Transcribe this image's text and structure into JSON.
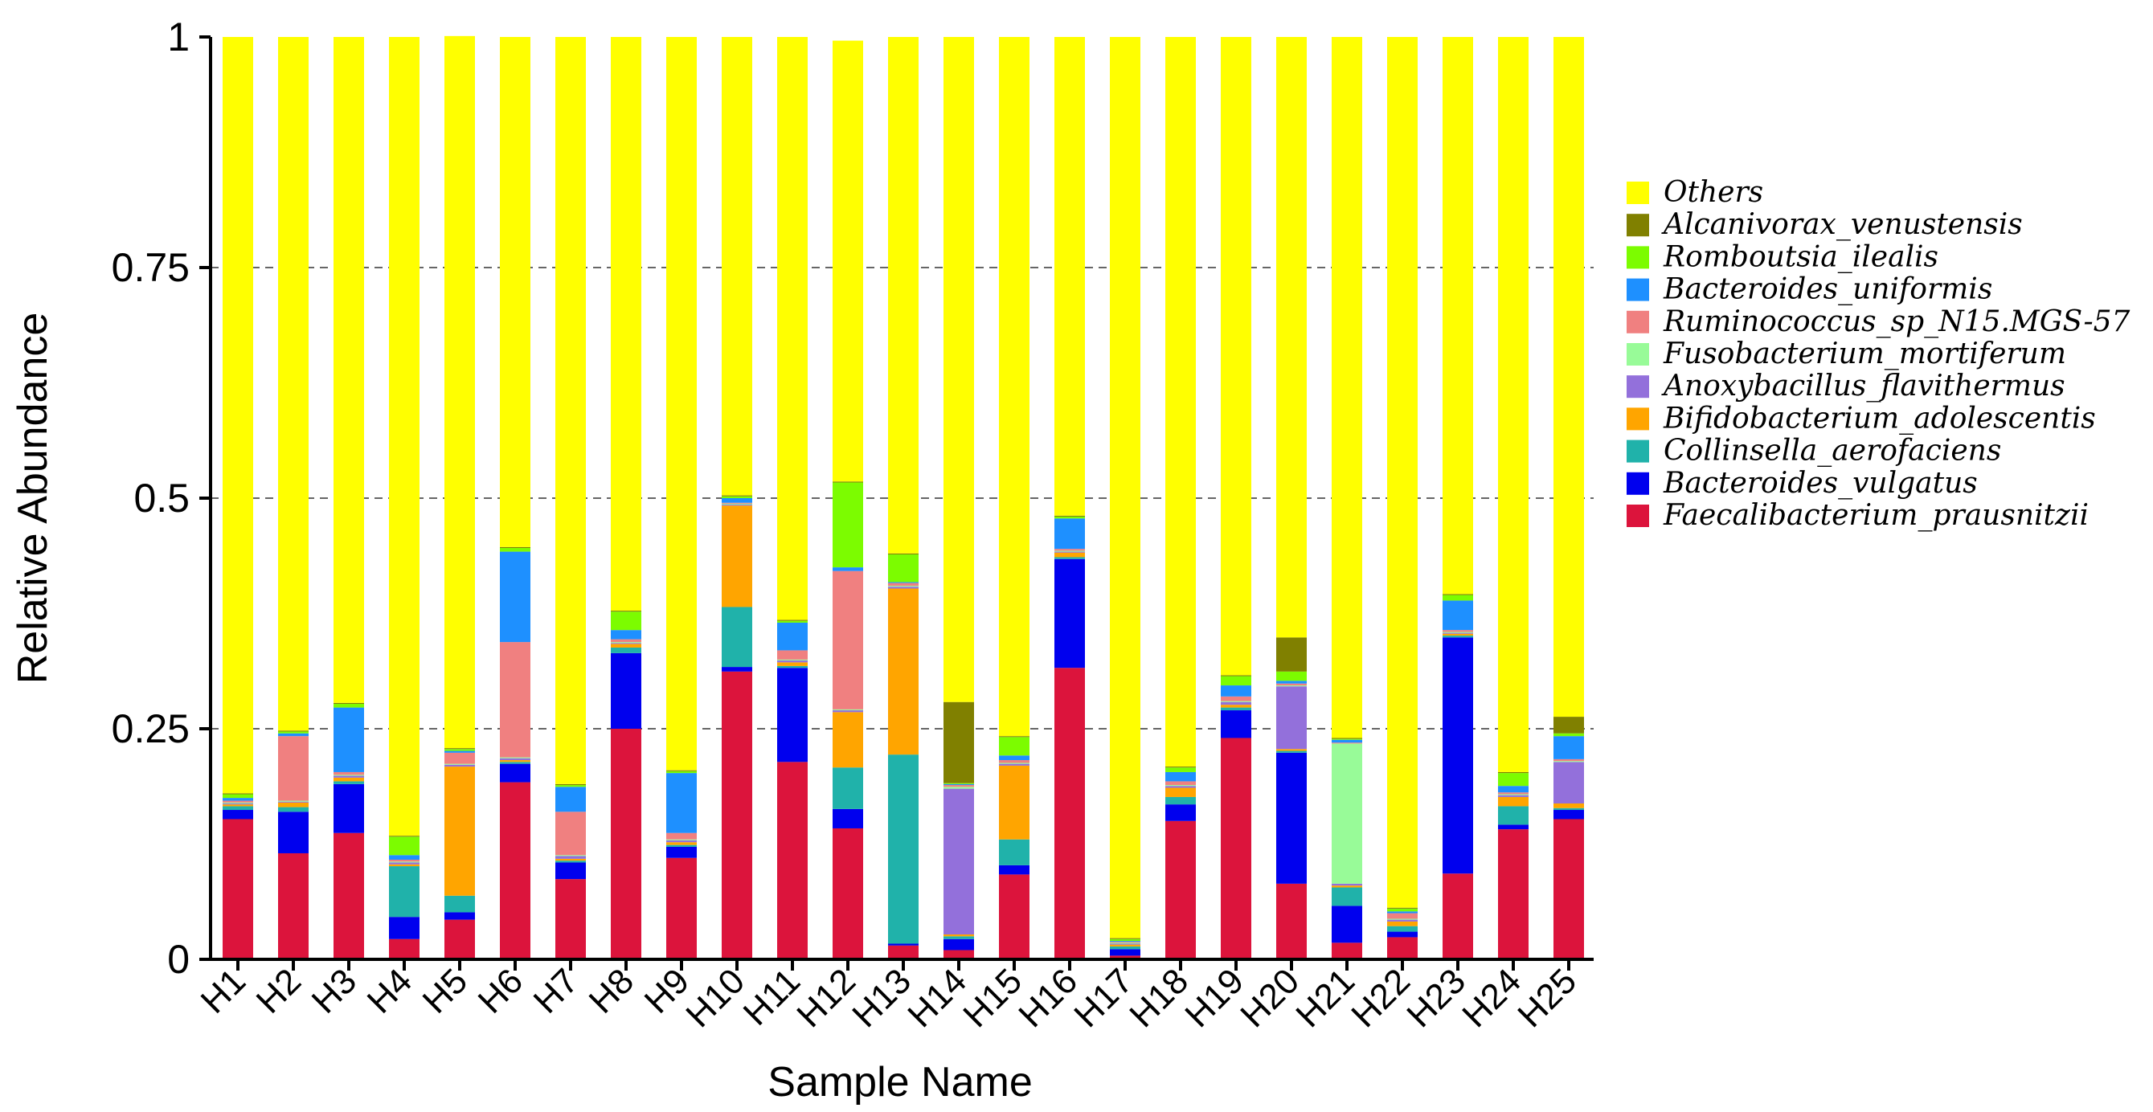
{
  "chart_data": {
    "type": "bar",
    "stacked": true,
    "title": "",
    "xlabel": "Sample Name",
    "ylabel": "Relative Abundance",
    "ylim": [
      0,
      1
    ],
    "yticks": [
      0,
      0.25,
      0.5,
      0.75,
      1
    ],
    "ytick_labels": [
      "0",
      "0.25",
      "0.5",
      "0.75",
      "1"
    ],
    "grid": "horizontal dashed at 0.25, 0.5, 0.75",
    "legend_position": "right",
    "categories": [
      "H1",
      "H2",
      "H3",
      "H4",
      "H5",
      "H6",
      "H7",
      "H8",
      "H9",
      "H10",
      "H11",
      "H12",
      "H13",
      "H14",
      "H15",
      "H16",
      "H17",
      "H18",
      "H19",
      "H20",
      "H21",
      "H22",
      "H23",
      "H24",
      "H25"
    ],
    "series": [
      {
        "name": "Faecalibacterium_prausnitzii",
        "color": "#dc143c",
        "values": [
          0.152,
          0.115,
          0.137,
          0.022,
          0.043,
          0.192,
          0.087,
          0.25,
          0.11,
          0.312,
          0.214,
          0.142,
          0.015,
          0.01,
          0.092,
          0.316,
          0.004,
          0.15,
          0.24,
          0.082,
          0.018,
          0.024,
          0.093,
          0.141,
          0.152
        ]
      },
      {
        "name": "Bacteroides_vulgatus",
        "color": "#0000ee",
        "values": [
          0.01,
          0.045,
          0.053,
          0.024,
          0.008,
          0.02,
          0.018,
          0.082,
          0.012,
          0.005,
          0.102,
          0.021,
          0.002,
          0.012,
          0.01,
          0.118,
          0.007,
          0.018,
          0.03,
          0.142,
          0.04,
          0.006,
          0.256,
          0.005,
          0.01
        ]
      },
      {
        "name": "Collinsella_aerofaciens",
        "color": "#20b2aa",
        "values": [
          0.004,
          0.005,
          0.003,
          0.055,
          0.018,
          0.002,
          0.002,
          0.006,
          0.002,
          0.065,
          0.002,
          0.045,
          0.205,
          0.003,
          0.028,
          0.002,
          0.003,
          0.008,
          0.003,
          0.002,
          0.02,
          0.006,
          0.002,
          0.02,
          0.002
        ]
      },
      {
        "name": "Bifidobacterium_adolescentis",
        "color": "#ffa500",
        "values": [
          0.002,
          0.005,
          0.004,
          0.002,
          0.14,
          0.002,
          0.002,
          0.004,
          0.003,
          0.11,
          0.004,
          0.06,
          0.18,
          0.002,
          0.08,
          0.005,
          0.002,
          0.01,
          0.003,
          0.002,
          0.002,
          0.005,
          0.002,
          0.01,
          0.005
        ]
      },
      {
        "name": "Anoxybacillus_flavithermus",
        "color": "#9370db",
        "values": [
          0.001,
          0.001,
          0.002,
          0.002,
          0.002,
          0.002,
          0.003,
          0.001,
          0.002,
          0.001,
          0.002,
          0.002,
          0.002,
          0.158,
          0.002,
          0.001,
          0.001,
          0.002,
          0.003,
          0.068,
          0.002,
          0.002,
          0.001,
          0.002,
          0.045
        ]
      },
      {
        "name": "Fusobacterium_mortiferum",
        "color": "#98fb98",
        "values": [
          0.001,
          0.001,
          0.001,
          0.001,
          0.001,
          0.001,
          0.001,
          0.001,
          0.001,
          0.001,
          0.001,
          0.001,
          0.001,
          0.002,
          0.001,
          0.001,
          0.001,
          0.001,
          0.001,
          0.001,
          0.152,
          0.001,
          0.001,
          0.001,
          0.001
        ]
      },
      {
        "name": "Ruminococcus_sp_N15.MGS-57",
        "color": "#f08080",
        "values": [
          0.002,
          0.07,
          0.003,
          0.002,
          0.012,
          0.125,
          0.047,
          0.003,
          0.007,
          0.001,
          0.01,
          0.15,
          0.003,
          0.002,
          0.003,
          0.002,
          0.001,
          0.004,
          0.005,
          0.002,
          0.001,
          0.006,
          0.002,
          0.002,
          0.002
        ]
      },
      {
        "name": "Bacteroides_uniformis",
        "color": "#1e90ff",
        "values": [
          0.003,
          0.003,
          0.07,
          0.005,
          0.002,
          0.098,
          0.027,
          0.01,
          0.065,
          0.005,
          0.03,
          0.004,
          0.001,
          0.001,
          0.005,
          0.033,
          0.001,
          0.01,
          0.012,
          0.003,
          0.003,
          0.002,
          0.032,
          0.007,
          0.025
        ]
      },
      {
        "name": "Romboutsia_ilealis",
        "color": "#7cfc00",
        "values": [
          0.004,
          0.002,
          0.004,
          0.02,
          0.002,
          0.004,
          0.002,
          0.02,
          0.002,
          0.002,
          0.002,
          0.092,
          0.03,
          0.001,
          0.02,
          0.002,
          0.002,
          0.005,
          0.01,
          0.01,
          0.001,
          0.003,
          0.006,
          0.014,
          0.003
        ]
      },
      {
        "name": "Alcanivorax_venustensis",
        "color": "#808000",
        "values": [
          0.001,
          0.001,
          0.001,
          0.001,
          0.001,
          0.001,
          0.001,
          0.001,
          0.001,
          0.001,
          0.001,
          0.001,
          0.001,
          0.088,
          0.001,
          0.001,
          0.001,
          0.001,
          0.001,
          0.037,
          0.001,
          0.001,
          0.001,
          0.001,
          0.018
        ]
      },
      {
        "name": "Others",
        "color": "#ffff00",
        "values": [
          0.82,
          0.752,
          0.722,
          0.866,
          0.772,
          0.553,
          0.81,
          0.622,
          0.795,
          0.497,
          0.632,
          0.478,
          0.56,
          0.721,
          0.758,
          0.519,
          0.977,
          0.791,
          0.692,
          0.651,
          0.76,
          0.944,
          0.604,
          0.797,
          0.737
        ]
      }
    ],
    "legend_order": [
      "Others",
      "Alcanivorax_venustensis",
      "Romboutsia_ilealis",
      "Bacteroides_uniformis",
      "Ruminococcus_sp_N15.MGS-57",
      "Fusobacterium_mortiferum",
      "Anoxybacillus_flavithermus",
      "Bifidobacterium_adolescentis",
      "Collinsella_aerofaciens",
      "Bacteroides_vulgatus",
      "Faecalibacterium_prausnitzii"
    ]
  }
}
